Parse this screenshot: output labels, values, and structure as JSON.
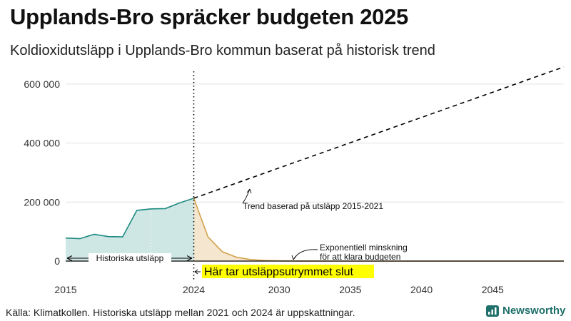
{
  "header": {
    "title": "Upplands-Bro spräcker budgeten 2025",
    "subtitle": "Koldioxidutsläpp i Upplands-Bro kommun baserat på historisk trend"
  },
  "footer": {
    "source": "Källa: Klimatkollen. Historiska utsläpp mellan 2021 och 2024 är uppskattningar.",
    "brand": "Newsworthy"
  },
  "colors": {
    "historical": "#1a8a80",
    "historical_fill": "#cfe7e4",
    "budget": "#d4a14a",
    "budget_fill": "#f5e6cf",
    "highlight": "#ffff00",
    "trend": "#000000"
  },
  "chart_data": {
    "type": "line",
    "title": "Koldioxidutsläpp i Upplands-Bro kommun baserat på historisk trend",
    "xlabel": "",
    "ylabel": "",
    "xlim": [
      2015,
      2050
    ],
    "ylim": [
      0,
      660000
    ],
    "x_ticks": [
      2015,
      2024,
      2030,
      2035,
      2040,
      2045
    ],
    "y_ticks": [
      0,
      200000,
      400000,
      600000
    ],
    "y_tick_labels": [
      "0",
      "200 000",
      "400 000",
      "600 000"
    ],
    "grid": true,
    "series": [
      {
        "name": "Historiska utsläpp",
        "style": "solid-area",
        "x": [
          2015,
          2016,
          2017,
          2018,
          2019,
          2020,
          2021,
          2022,
          2023,
          2024
        ],
        "values": [
          78000,
          76000,
          91000,
          83000,
          82000,
          172000,
          177000,
          178000,
          197000,
          213000
        ]
      },
      {
        "name": "Trend baserad på utsläpp 2015-2021",
        "style": "dashed",
        "x": [
          2024,
          2050
        ],
        "values": [
          213000,
          658000
        ]
      },
      {
        "name": "Exponentiell minskning för att klara budgeten",
        "style": "solid-area",
        "x": [
          2024,
          2025,
          2026,
          2027,
          2028,
          2029,
          2030,
          2032,
          2035,
          2040,
          2045,
          2050
        ],
        "values": [
          213000,
          82000,
          32000,
          13000,
          5000,
          2000,
          800,
          200,
          0,
          0,
          0,
          0
        ]
      }
    ],
    "annotations": {
      "historical_label": "Historiska utsläpp",
      "trend_label": "Trend baserad på utsläpp 2015-2021",
      "decline_label_line1": "Exponentiell minskning",
      "decline_label_line2": "för att klara budgeten",
      "budget_end_label": "Här tar utsläppsutrymmet slut",
      "budget_end_year": 2024
    }
  }
}
